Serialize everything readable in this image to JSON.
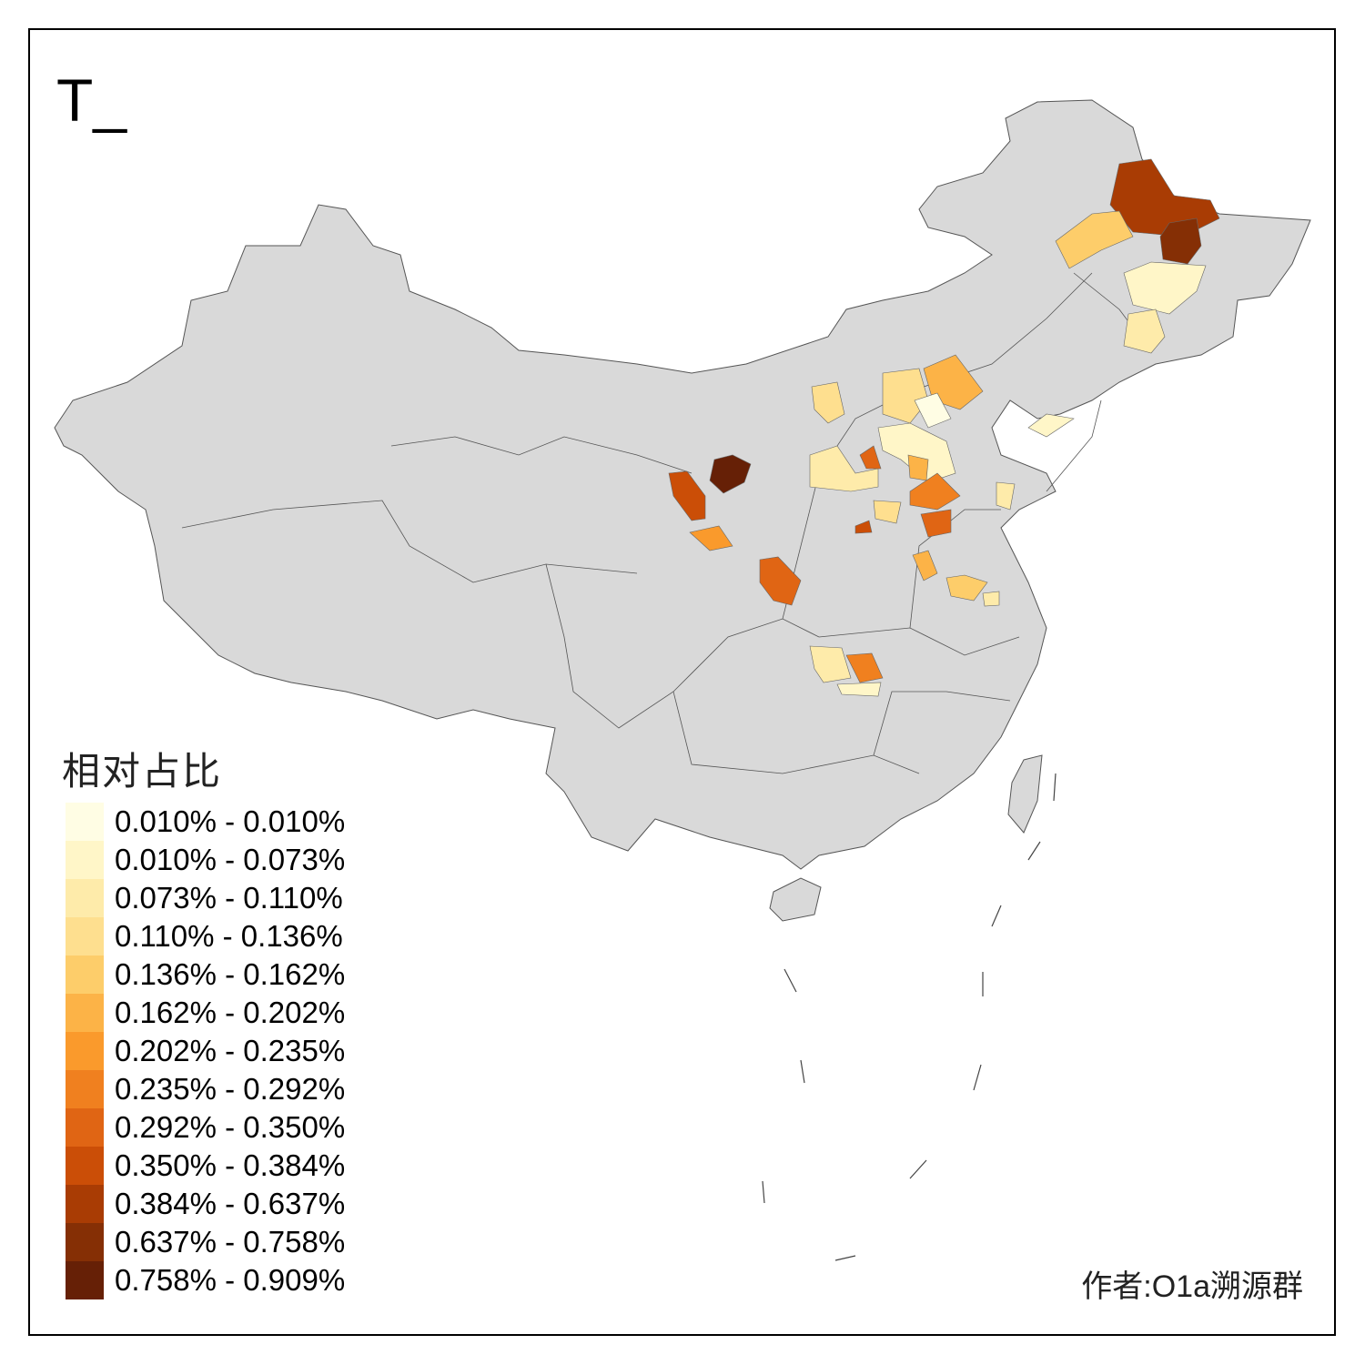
{
  "title": "T_",
  "legend": {
    "title": "相对占比",
    "items": [
      {
        "label": "0.010% - 0.010%",
        "color": "#FFFDE4"
      },
      {
        "label": "0.010% - 0.073%",
        "color": "#FFF6C8"
      },
      {
        "label": "0.073% - 0.110%",
        "color": "#FEEBAA"
      },
      {
        "label": "0.110% - 0.136%",
        "color": "#FEDF8F"
      },
      {
        "label": "0.136% - 0.162%",
        "color": "#FDCD6A"
      },
      {
        "label": "0.162% - 0.202%",
        "color": "#FCB347"
      },
      {
        "label": "0.202% - 0.235%",
        "color": "#FA9A2C"
      },
      {
        "label": "0.235% - 0.292%",
        "color": "#F0801F"
      },
      {
        "label": "0.292% - 0.350%",
        "color": "#E06514"
      },
      {
        "label": "0.350% - 0.384%",
        "color": "#CB4E07"
      },
      {
        "label": "0.384% - 0.637%",
        "color": "#A93C04"
      },
      {
        "label": "0.637% - 0.758%",
        "color": "#852F05"
      },
      {
        "label": "0.758% - 0.909%",
        "color": "#662006"
      }
    ]
  },
  "base_color": "#D9D9D9",
  "author": "作者:O1a溯源群"
}
